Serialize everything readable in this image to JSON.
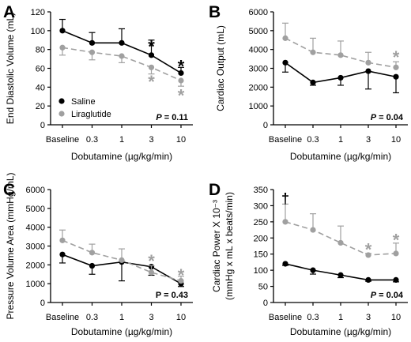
{
  "colors": {
    "saline": "#000000",
    "liraglutide": "#a0a0a0",
    "axis": "#000000"
  },
  "chart_data": [
    {
      "panel": "A",
      "type": "line",
      "categories": [
        "Baseline",
        "0.3",
        "1",
        "3",
        "10"
      ],
      "xlabel": "Dobutamine (µg/kg/min)",
      "ylabel": "End Diastolic Volume (mL)",
      "ylim": [
        0,
        120
      ],
      "yticks": [
        "0",
        "20",
        "40",
        "60",
        "80",
        "100",
        "120"
      ],
      "series": [
        {
          "name": "Saline",
          "values": [
            100,
            87,
            87,
            74,
            55
          ],
          "errors": [
            12,
            11,
            15,
            16,
            6
          ],
          "error_dir": "up",
          "color": "#000000",
          "dashed": false
        },
        {
          "name": "Liraglutide",
          "values": [
            82,
            77,
            73,
            61,
            47
          ],
          "errors": [
            8,
            8,
            7,
            7,
            6
          ],
          "error_dir": "down",
          "color": "#a0a0a0",
          "dashed": true
        }
      ],
      "annotations": [
        {
          "text": "*",
          "category": "3",
          "value": 85,
          "color": "#000000"
        },
        {
          "text": "*",
          "category": "10",
          "value": 64,
          "color": "#000000"
        },
        {
          "text": "*",
          "category": "3",
          "value": 48,
          "color": "#a0a0a0"
        },
        {
          "text": "*",
          "category": "10",
          "value": 33,
          "color": "#a0a0a0"
        }
      ],
      "pvalue": {
        "label": "P",
        "eq": " = 0.11",
        "italic": true
      },
      "legend": "bottom-left"
    },
    {
      "panel": "B",
      "type": "line",
      "categories": [
        "Baseline",
        "0.3",
        "1",
        "3",
        "10"
      ],
      "xlabel": "Dobutamine (µg/kg/min)",
      "ylabel": "Cardiac Output (mL)",
      "ylim": [
        0,
        6000
      ],
      "yticks": [
        "0",
        "1000",
        "2000",
        "3000",
        "4000",
        "5000",
        "6000"
      ],
      "series": [
        {
          "name": "Saline",
          "values": [
            3300,
            2250,
            2500,
            2850,
            2550
          ],
          "errors": [
            500,
            150,
            400,
            950,
            850
          ],
          "error_dir": "down",
          "color": "#000000",
          "dashed": false
        },
        {
          "name": "Liraglutide",
          "values": [
            4600,
            3850,
            3700,
            3300,
            3050
          ],
          "errors": [
            800,
            750,
            750,
            550,
            300
          ],
          "error_dir": "up",
          "color": "#a0a0a0",
          "dashed": true
        }
      ],
      "annotations": [
        {
          "text": "*",
          "category": "10",
          "value": 3700,
          "color": "#a0a0a0"
        }
      ],
      "pvalue": {
        "label": "P",
        "eq": " = 0.04",
        "italic": true
      }
    },
    {
      "panel": "C",
      "type": "line",
      "categories": [
        "Baseline",
        "0.3",
        "1",
        "3",
        "10"
      ],
      "xlabel": "Dobutamine (µg/kg/min)",
      "ylabel": "Pressure Volume Area (mmHg/mL)",
      "ylim": [
        0,
        6000
      ],
      "yticks": [
        "0",
        "1000",
        "2000",
        "3000",
        "4000",
        "5000",
        "6000"
      ],
      "series": [
        {
          "name": "Saline",
          "values": [
            2550,
            1950,
            2150,
            1900,
            1000
          ],
          "errors": [
            450,
            450,
            1000,
            450,
            150
          ],
          "error_dir": "down",
          "color": "#000000",
          "dashed": false
        },
        {
          "name": "Liraglutide",
          "values": [
            3300,
            2650,
            2250,
            1600,
            1150
          ],
          "errors": [
            550,
            450,
            600,
            350,
            250
          ],
          "error_dir": "up",
          "color": "#a0a0a0",
          "dashed": true
        }
      ],
      "annotations": [
        {
          "text": "*",
          "category": "3",
          "value": 2300,
          "color": "#a0a0a0"
        },
        {
          "text": "*",
          "category": "10",
          "value": 1550,
          "color": "#a0a0a0"
        }
      ],
      "pvalue": {
        "label": "P",
        "eq": " = 0.43",
        "italic": false
      }
    },
    {
      "panel": "D",
      "type": "line",
      "categories": [
        "Baseline",
        "0.3",
        "1",
        "3",
        "10"
      ],
      "xlabel": "Dobutamine (µg/kg/min)",
      "ylabel": "Cardiac Power X 10⁻³",
      "ylabel2": "(mmHg x mL x beats/min)",
      "ylim": [
        0,
        350
      ],
      "yticks": [
        "0",
        "50",
        "100",
        "150",
        "200",
        "250",
        "300",
        "350"
      ],
      "series": [
        {
          "name": "Saline",
          "values": [
            120,
            100,
            85,
            70,
            70
          ],
          "errors": [
            5,
            12,
            8,
            4,
            6
          ],
          "error_dir": "down",
          "color": "#000000",
          "dashed": false
        },
        {
          "name": "Liraglutide",
          "values": [
            250,
            225,
            185,
            147,
            152
          ],
          "errors": [
            55,
            50,
            52,
            5,
            32
          ],
          "error_dir": "up",
          "color": "#a0a0a0",
          "dashed": true
        }
      ],
      "annotations": [
        {
          "text": "†",
          "category": "Baseline",
          "value": 322,
          "color": "#000000"
        },
        {
          "text": "*",
          "category": "3",
          "value": 170,
          "color": "#a0a0a0"
        },
        {
          "text": "*",
          "category": "10",
          "value": 200,
          "color": "#a0a0a0"
        }
      ],
      "pvalue": {
        "label": "P",
        "eq": " = 0.04",
        "italic": true
      }
    }
  ]
}
